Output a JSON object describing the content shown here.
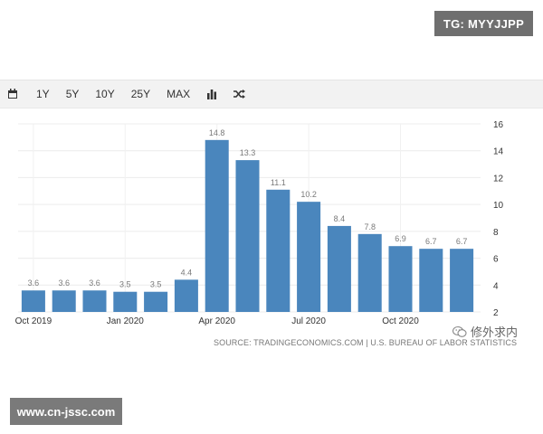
{
  "watermark_top": "TG: MYYJJPP",
  "watermark_bottom": "www.cn-jssc.com",
  "toolbar": {
    "calendar_icon": "calendar-icon",
    "ranges": [
      "1Y",
      "5Y",
      "10Y",
      "25Y",
      "MAX"
    ],
    "chart_type_icon": "bar-chart-icon",
    "shuffle_icon": "shuffle-icon"
  },
  "source_text": "SOURCE: TRADINGECONOMICS.COM | U.S. BUREAU OF LABOR STATISTICS",
  "wechat_label": "修外求内",
  "colors": {
    "bar": "#4a86bd",
    "grid": "#ececec",
    "badge": "#6f6f6f"
  },
  "chart_data": {
    "type": "bar",
    "categories": [
      "Oct 2019",
      "Nov 2019",
      "Dec 2019",
      "Jan 2020",
      "Feb 2020",
      "Mar 2020",
      "Apr 2020",
      "May 2020",
      "Jun 2020",
      "Jul 2020",
      "Aug 2020",
      "Sep 2020",
      "Oct 2020",
      "Nov 2020",
      "Dec 2020"
    ],
    "values": [
      3.6,
      3.6,
      3.6,
      3.5,
      3.5,
      4.4,
      14.8,
      13.3,
      11.1,
      10.2,
      8.4,
      7.8,
      6.9,
      6.7,
      6.7
    ],
    "value_labels": [
      "3.6",
      "3.6",
      "3.6",
      "3.5",
      "3.5",
      "4.4",
      "14.8",
      "13.3",
      "11.1",
      "10.2",
      "8.4",
      "7.8",
      "6.9",
      "6.7",
      "6.7"
    ],
    "x_tick_labels": [
      {
        "index": 0,
        "label": "Oct 2019"
      },
      {
        "index": 3,
        "label": "Jan 2020"
      },
      {
        "index": 6,
        "label": "Apr 2020"
      },
      {
        "index": 9,
        "label": "Jul 2020"
      },
      {
        "index": 12,
        "label": "Oct 2020"
      }
    ],
    "yticks": [
      2,
      4,
      6,
      8,
      10,
      12,
      14,
      16
    ],
    "ylim": [
      2,
      16
    ],
    "y_axis_side": "right",
    "grid": true,
    "title": "",
    "xlabel": "",
    "ylabel": ""
  }
}
